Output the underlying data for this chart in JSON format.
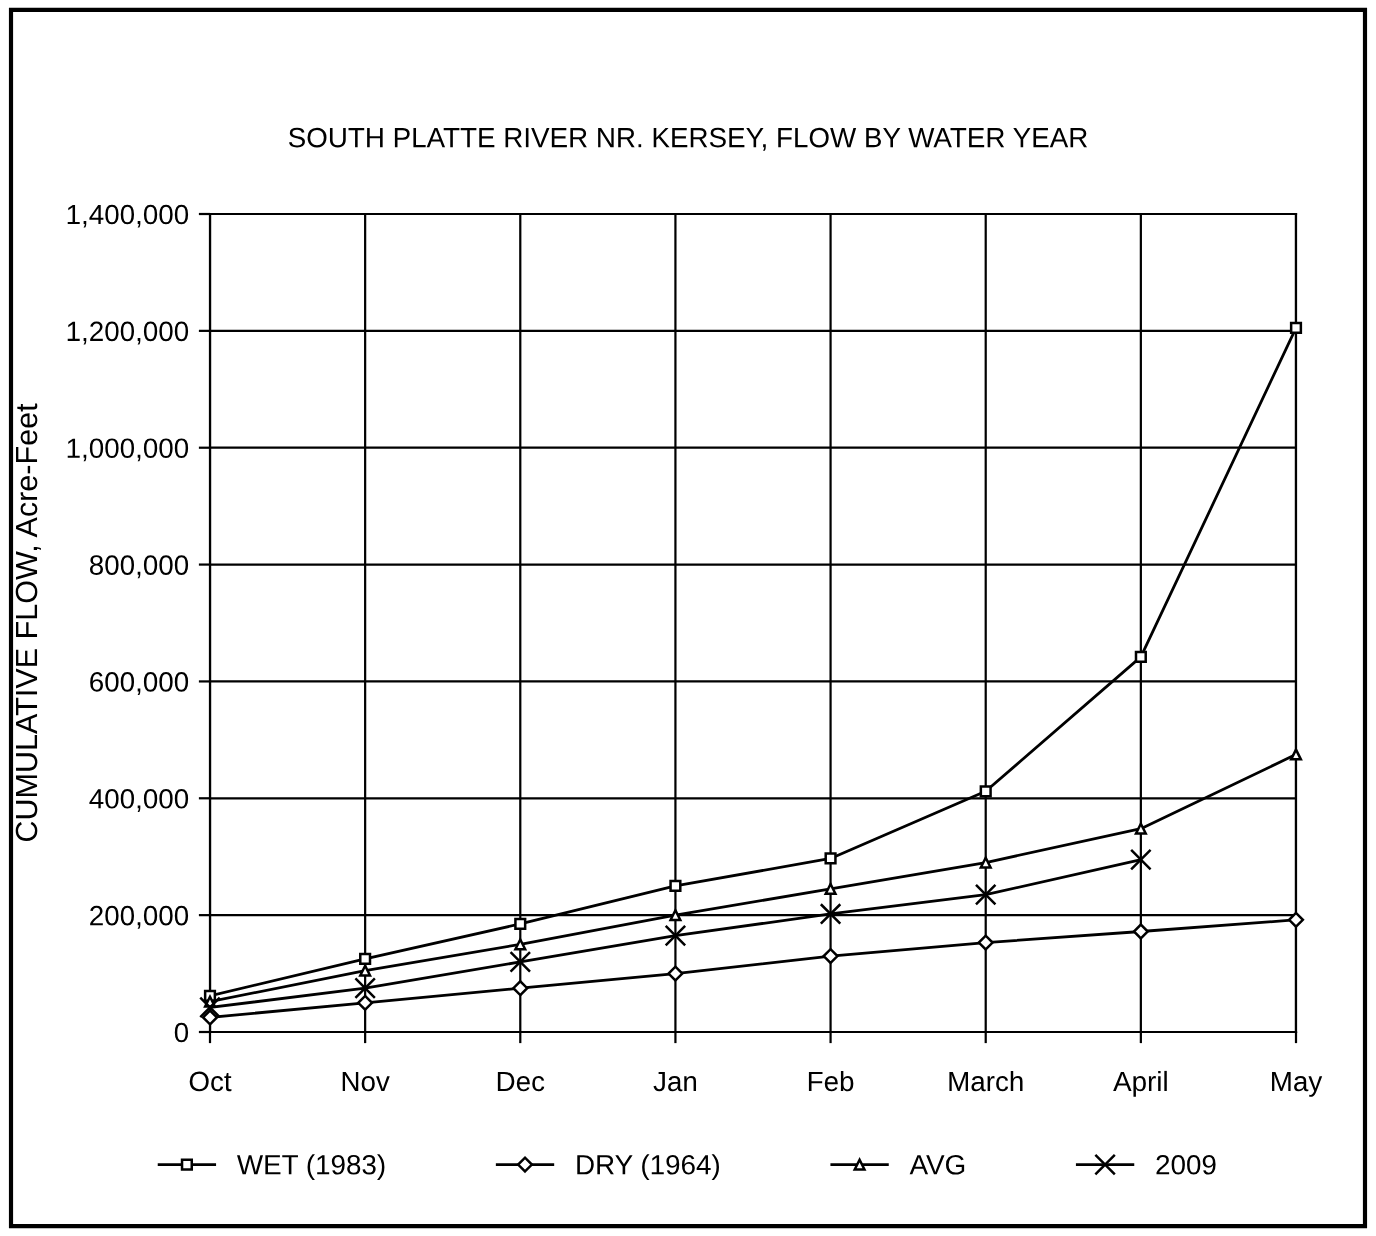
{
  "chart_data": {
    "type": "line",
    "title": "SOUTH PLATTE RIVER NR. KERSEY, FLOW BY WATER YEAR",
    "ylabel": "CUMULATIVE FLOW, Acre-Feet",
    "categories": [
      "Oct",
      "Nov",
      "Dec",
      "Jan",
      "Feb",
      "March",
      "April",
      "May"
    ],
    "series": [
      {
        "name": "WET (1983)",
        "color": "#000000",
        "marker": "square",
        "values": [
          62000,
          125000,
          185000,
          250000,
          297000,
          412000,
          642000,
          1205000
        ]
      },
      {
        "name": "DRY (1964)",
        "color": "#000000",
        "marker": "diamond",
        "values": [
          25000,
          50000,
          75000,
          100000,
          130000,
          153000,
          172000,
          192000
        ]
      },
      {
        "name": "AVG",
        "color": "#000000",
        "marker": "triangle",
        "values": [
          52000,
          105000,
          150000,
          200000,
          245000,
          290000,
          348000,
          475000
        ]
      },
      {
        "name": "2009",
        "color": "#000000",
        "marker": "cross",
        "values": [
          42000,
          75000,
          120000,
          165000,
          202000,
          235000,
          295000,
          null
        ]
      }
    ],
    "ylim": [
      0,
      1400000
    ],
    "yticks": [
      {
        "value": 0,
        "label": "0"
      },
      {
        "value": 200000,
        "label": "200,000"
      },
      {
        "value": 400000,
        "label": "400,000"
      },
      {
        "value": 600000,
        "label": "600,000"
      },
      {
        "value": 800000,
        "label": "800,000"
      },
      {
        "value": 1000000,
        "label": "1,000,000"
      },
      {
        "value": 1200000,
        "label": "1,200,000"
      },
      {
        "value": 1400000,
        "label": "1,400,000"
      }
    ],
    "grid": true,
    "legend": "bottom",
    "line_style": "solid"
  }
}
